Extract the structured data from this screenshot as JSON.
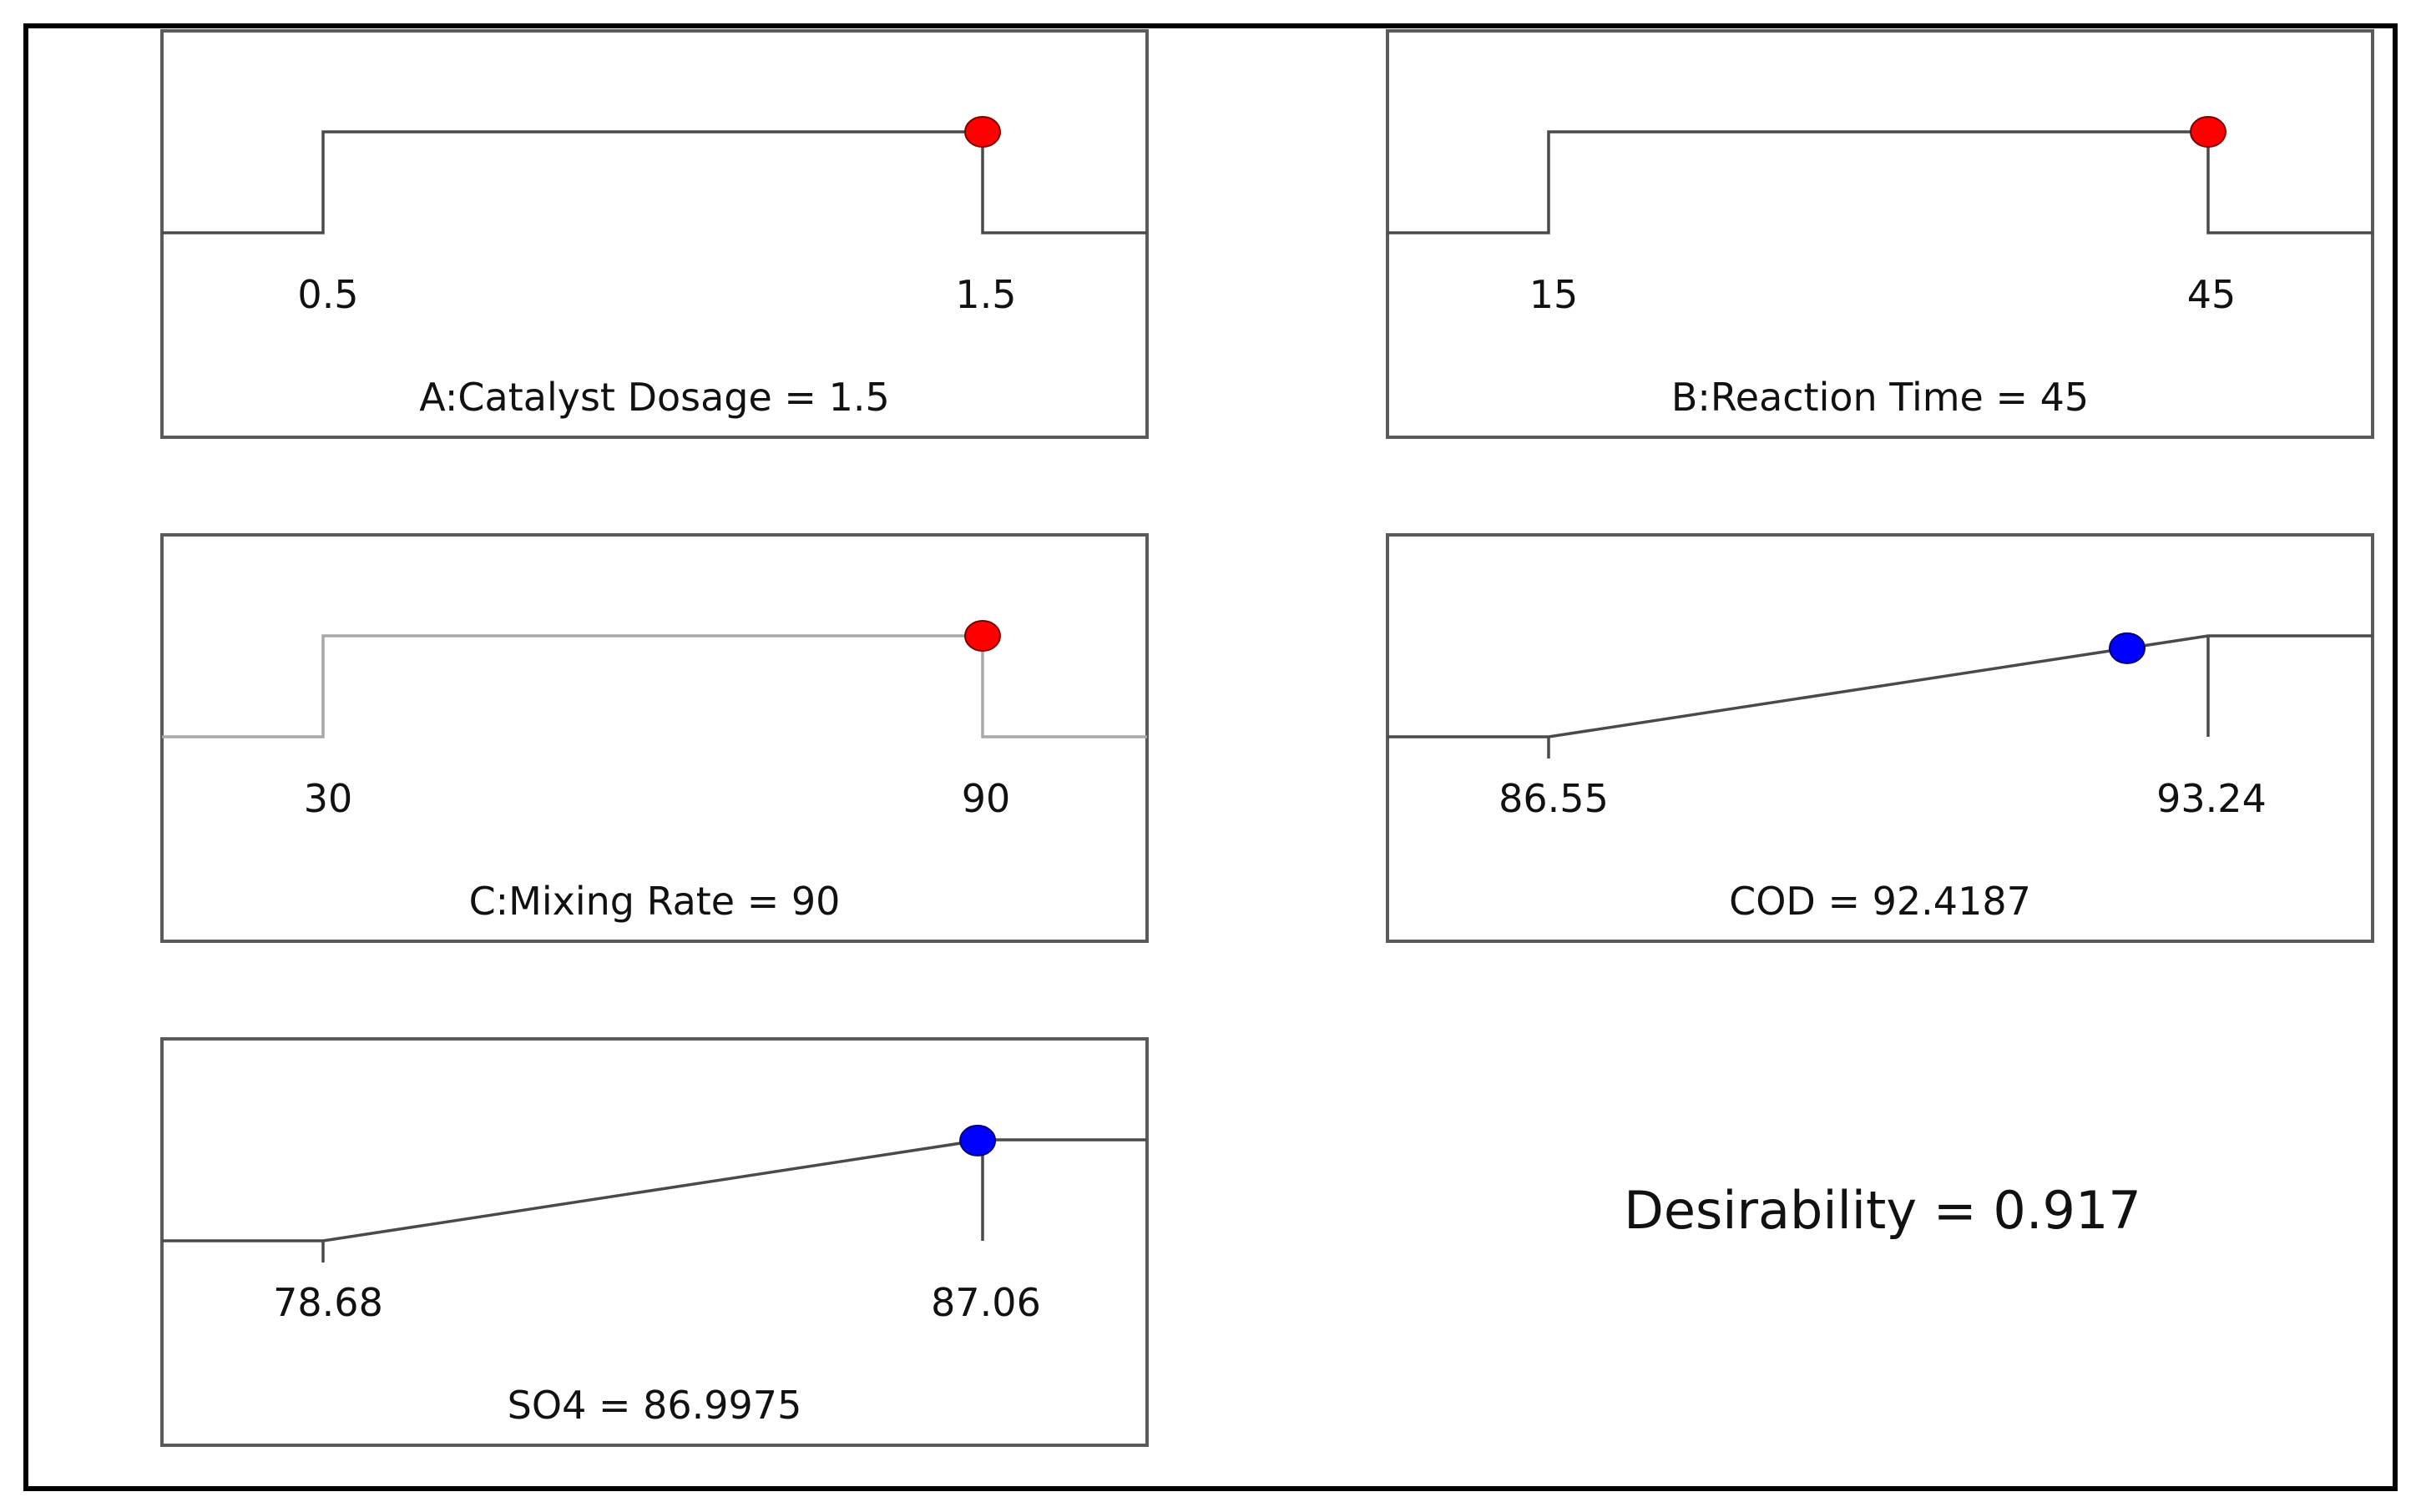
{
  "chart_data": [
    {
      "type": "line",
      "kind": "factor",
      "label": "A:Catalyst Dosage = 1.5",
      "low": 0.5,
      "high": 1.5,
      "tick_labels": [
        "0.5",
        "1.5"
      ],
      "value": 1.5,
      "point_color": "#ff0000"
    },
    {
      "type": "line",
      "kind": "factor",
      "label": "B:Reaction Time = 45",
      "low": 15,
      "high": 45,
      "tick_labels": [
        "15",
        "45"
      ],
      "value": 45,
      "point_color": "#ff0000"
    },
    {
      "type": "line",
      "kind": "factor",
      "label": "C:Mixing Rate = 90",
      "low": 30,
      "high": 90,
      "tick_labels": [
        "30",
        "90"
      ],
      "value": 90,
      "point_color": "#ff0000"
    },
    {
      "type": "line",
      "kind": "response",
      "label": "COD = 92.4187",
      "low": 86.55,
      "high": 93.24,
      "tick_labels": [
        "86.55",
        "93.24"
      ],
      "value": 92.4187,
      "point_color": "#0000ff"
    },
    {
      "type": "line",
      "kind": "response",
      "label": "SO4 = 86.9975",
      "low": 78.68,
      "high": 87.06,
      "tick_labels": [
        "78.68",
        "87.06"
      ],
      "value": 86.9975,
      "point_color": "#0000ff"
    }
  ],
  "desirability": {
    "label": "Desirability = 0.917",
    "value": 0.917
  }
}
